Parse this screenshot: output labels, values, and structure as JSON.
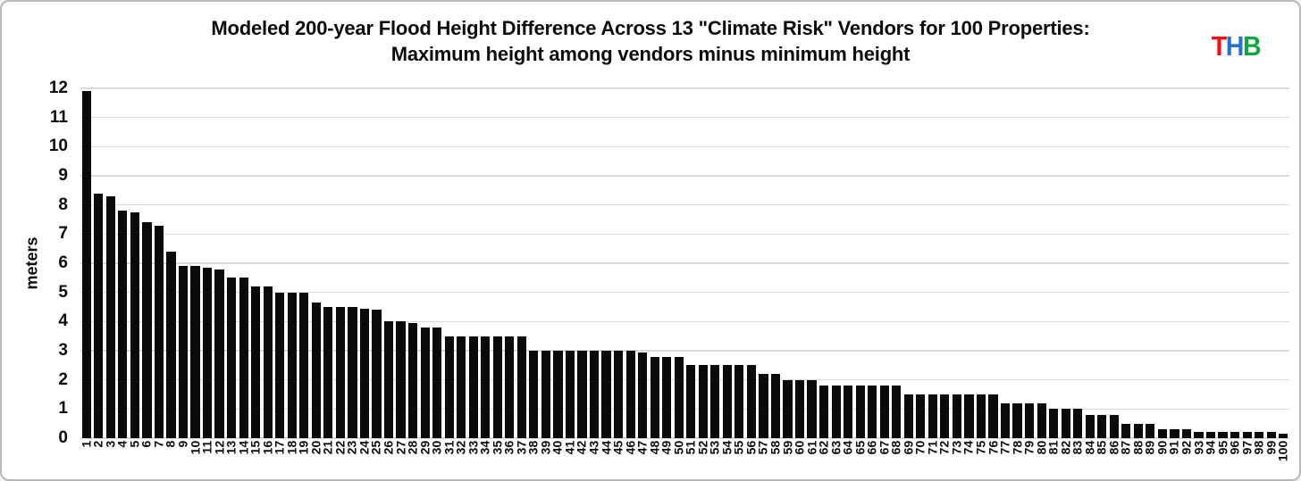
{
  "page": {
    "background": "#ffffff",
    "border_color": "#b9b9b9"
  },
  "header": {
    "title_line1": "Modeled 200-year Flood Height Difference Across 13 \"Climate Risk\" Vendors for 100 Properties:",
    "title_line2": "Maximum height among vendors minus minimum height",
    "logo_letters": [
      {
        "char": "T",
        "color": "#f30d0d"
      },
      {
        "char": "H",
        "color": "#2470d3"
      },
      {
        "char": "B",
        "color": "#12a73e"
      }
    ]
  },
  "chart_data": {
    "type": "bar",
    "title": "Modeled 200-year Flood Height Difference Across 13 \"Climate Risk\" Vendors for 100 Properties: Maximum height among vendors minus minimum height",
    "xlabel": "",
    "ylabel": "meters",
    "ylim": [
      0,
      12
    ],
    "ytick_interval": 1,
    "yticks": [
      "0",
      "1",
      "2",
      "3",
      "4",
      "5",
      "6",
      "7",
      "8",
      "9",
      "10",
      "11",
      "12"
    ],
    "grid": "horizontal-major",
    "legend": "none",
    "bar_color": "#0a0a0a",
    "categories": [
      "1",
      "2",
      "3",
      "4",
      "5",
      "6",
      "7",
      "8",
      "9",
      "10",
      "11",
      "12",
      "13",
      "14",
      "15",
      "16",
      "17",
      "18",
      "19",
      "20",
      "21",
      "22",
      "23",
      "24",
      "25",
      "26",
      "27",
      "28",
      "29",
      "30",
      "31",
      "32",
      "33",
      "34",
      "35",
      "36",
      "37",
      "38",
      "39",
      "40",
      "41",
      "42",
      "43",
      "44",
      "45",
      "46",
      "47",
      "48",
      "49",
      "50",
      "51",
      "52",
      "53",
      "54",
      "55",
      "56",
      "57",
      "58",
      "59",
      "60",
      "61",
      "62",
      "63",
      "64",
      "65",
      "66",
      "67",
      "68",
      "69",
      "70",
      "71",
      "72",
      "73",
      "74",
      "75",
      "76",
      "77",
      "78",
      "79",
      "80",
      "81",
      "82",
      "83",
      "84",
      "85",
      "86",
      "87",
      "88",
      "89",
      "90",
      "91",
      "92",
      "93",
      "94",
      "95",
      "96",
      "97",
      "98",
      "99",
      "100"
    ],
    "values": [
      11.9,
      8.4,
      8.3,
      7.8,
      7.75,
      7.4,
      7.3,
      6.4,
      5.9,
      5.9,
      5.85,
      5.8,
      5.5,
      5.5,
      5.2,
      5.2,
      5.0,
      5.0,
      5.0,
      4.65,
      4.5,
      4.5,
      4.5,
      4.45,
      4.4,
      4.0,
      4.0,
      3.95,
      3.8,
      3.8,
      3.5,
      3.5,
      3.5,
      3.5,
      3.5,
      3.5,
      3.5,
      3.0,
      3.0,
      3.0,
      3.0,
      3.0,
      3.0,
      3.0,
      3.0,
      3.0,
      2.95,
      2.8,
      2.8,
      2.8,
      2.5,
      2.5,
      2.5,
      2.5,
      2.5,
      2.5,
      2.2,
      2.2,
      2.0,
      2.0,
      2.0,
      1.8,
      1.8,
      1.8,
      1.8,
      1.8,
      1.8,
      1.8,
      1.5,
      1.5,
      1.5,
      1.5,
      1.5,
      1.5,
      1.5,
      1.5,
      1.2,
      1.2,
      1.2,
      1.2,
      1.0,
      1.0,
      1.0,
      0.8,
      0.8,
      0.8,
      0.5,
      0.5,
      0.5,
      0.3,
      0.3,
      0.3,
      0.2,
      0.2,
      0.2,
      0.2,
      0.2,
      0.2,
      0.2,
      0.15
    ]
  }
}
